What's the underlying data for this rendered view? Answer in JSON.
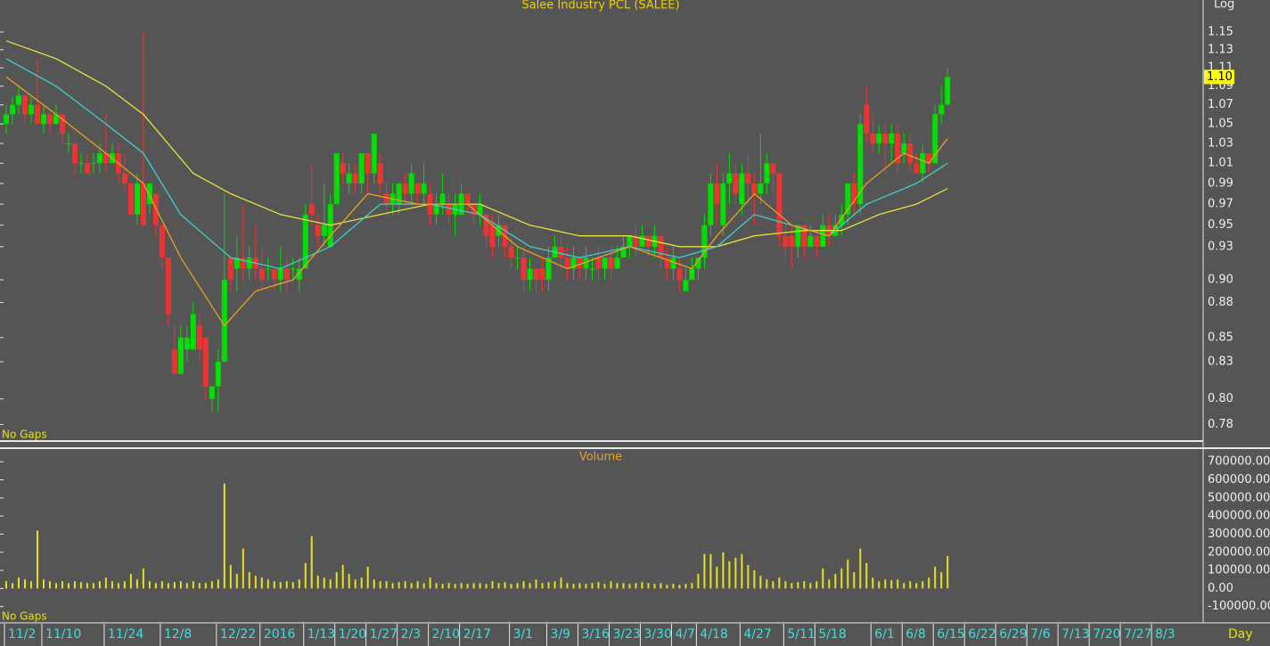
{
  "chart_data": [
    {
      "type": "candlestick",
      "title": "Salee Industry PCL (SALEE)",
      "scale_label": "Log",
      "note": "No Gaps",
      "log_scale": true,
      "up_color": "#00e000",
      "down_color": "#ee3333",
      "xlim": [
        -1,
        192
      ],
      "ylim": [
        0.768,
        1.187
      ],
      "yticks": [
        0.78,
        {
          "value": 0.8,
          "label": "0.80"
        },
        0.83,
        0.85,
        0.88,
        {
          "value": 0.9,
          "label": "0.90"
        },
        0.93,
        0.95,
        0.97,
        0.99,
        1.01,
        1.03,
        1.05,
        1.07,
        1.09,
        1.11,
        1.13,
        1.15
      ],
      "last_price": {
        "value": 1.1,
        "label": "1.10"
      },
      "open": [
        1.05,
        1.06,
        1.07,
        1.08,
        1.06,
        1.07,
        1.05,
        1.06,
        1.05,
        1.06,
        1.03,
        1.03,
        1.01,
        1.01,
        1.01,
        1.01,
        1.02,
        1.01,
        1.02,
        1.0,
        0.99,
        0.96,
        0.99,
        0.97,
        0.98,
        0.95,
        0.92,
        0.84,
        0.82,
        0.84,
        0.84,
        0.86,
        0.85,
        0.8,
        0.81,
        0.83,
        0.92,
        0.91,
        0.92,
        0.91,
        0.92,
        0.91,
        0.91,
        0.91,
        0.9,
        0.91,
        0.91,
        0.9,
        0.91,
        0.97,
        0.95,
        0.94,
        0.93,
        0.97,
        1.01,
        0.99,
        1.0,
        0.99,
        1.02,
        1.0,
        1.01,
        0.98,
        0.97,
        0.97,
        0.99,
        0.98,
        0.99,
        0.98,
        0.98,
        0.96,
        0.97,
        0.97,
        0.96,
        0.96,
        0.98,
        0.97,
        0.96,
        0.96,
        0.95,
        0.94,
        0.95,
        0.93,
        0.92,
        0.92,
        0.9,
        0.91,
        0.91,
        0.9,
        0.92,
        0.93,
        0.92,
        0.91,
        0.92,
        0.91,
        0.91,
        0.92,
        0.91,
        0.92,
        0.91,
        0.92,
        0.93,
        0.94,
        0.93,
        0.94,
        0.93,
        0.94,
        0.92,
        0.91,
        0.91,
        0.89,
        0.9,
        0.91,
        0.92,
        0.95,
        0.99,
        0.95,
        0.99,
        1.0,
        0.97,
        1.0,
        0.99,
        0.98,
        0.99,
        1.01,
        1.0,
        0.94,
        0.94,
        0.93,
        0.95,
        0.93,
        0.94,
        0.93,
        0.95,
        0.94,
        0.95,
        0.96,
        0.99,
        0.97,
        1.07,
        1.04,
        1.03,
        1.04,
        1.03,
        1.04,
        1.02,
        1.03,
        1.01,
        1.0,
        1.02,
        1.01,
        1.06,
        1.07
      ],
      "high": [
        1.07,
        1.08,
        1.09,
        1.08,
        1.08,
        1.12,
        1.07,
        1.06,
        1.07,
        1.06,
        1.04,
        1.03,
        1.02,
        1.02,
        1.02,
        1.03,
        1.06,
        1.03,
        1.03,
        1.02,
        0.99,
        1.0,
        1.15,
        0.99,
        0.98,
        0.95,
        0.92,
        0.86,
        0.86,
        0.86,
        0.88,
        0.87,
        0.85,
        0.81,
        0.84,
        0.98,
        0.92,
        0.94,
        0.97,
        0.93,
        0.95,
        0.93,
        0.92,
        0.91,
        0.93,
        0.92,
        0.92,
        0.92,
        0.97,
        1.01,
        0.96,
        0.99,
        0.98,
        1.02,
        1.02,
        1.01,
        1.01,
        1.02,
        1.02,
        1.04,
        1.02,
        0.99,
        0.99,
        0.99,
        1.0,
        1.01,
        0.99,
        1.01,
        0.99,
        0.98,
        1.0,
        0.98,
        0.98,
        0.99,
        0.98,
        0.97,
        0.98,
        0.96,
        0.96,
        0.96,
        0.95,
        0.94,
        0.93,
        0.93,
        0.92,
        0.91,
        0.92,
        0.93,
        0.94,
        0.94,
        0.93,
        0.93,
        0.92,
        0.93,
        0.92,
        0.93,
        0.92,
        0.93,
        0.93,
        0.94,
        0.94,
        0.95,
        0.95,
        0.94,
        0.95,
        0.94,
        0.93,
        0.93,
        0.92,
        0.91,
        0.92,
        0.92,
        0.96,
        1.0,
        1.01,
        1.0,
        1.02,
        1.01,
        1.01,
        1.02,
        1.0,
        1.04,
        1.02,
        1.01,
        1.0,
        0.95,
        0.95,
        0.95,
        0.95,
        0.95,
        0.94,
        0.96,
        0.96,
        0.96,
        0.97,
        0.99,
        1.0,
        1.06,
        1.09,
        1.06,
        1.05,
        1.05,
        1.05,
        1.05,
        1.04,
        1.04,
        1.02,
        1.03,
        1.02,
        1.07,
        1.09,
        1.11
      ],
      "low": [
        1.04,
        1.05,
        1.06,
        1.05,
        1.05,
        1.05,
        1.04,
        1.04,
        1.05,
        1.03,
        1.02,
        1.0,
        1.0,
        1.0,
        1.0,
        1.0,
        1.0,
        1.01,
        0.99,
        0.98,
        0.96,
        0.95,
        0.95,
        0.96,
        0.94,
        0.91,
        0.86,
        0.82,
        0.82,
        0.83,
        0.84,
        0.83,
        0.8,
        0.79,
        0.79,
        0.83,
        0.89,
        0.89,
        0.9,
        0.9,
        0.9,
        0.89,
        0.9,
        0.89,
        0.89,
        0.89,
        0.9,
        0.89,
        0.91,
        0.95,
        0.93,
        0.93,
        0.93,
        0.97,
        0.99,
        0.98,
        0.98,
        0.98,
        0.98,
        0.99,
        0.98,
        0.96,
        0.96,
        0.96,
        0.97,
        0.97,
        0.97,
        0.97,
        0.95,
        0.95,
        0.96,
        0.95,
        0.94,
        0.96,
        0.96,
        0.95,
        0.95,
        0.93,
        0.92,
        0.93,
        0.92,
        0.91,
        0.91,
        0.89,
        0.89,
        0.89,
        0.89,
        0.89,
        0.92,
        0.91,
        0.9,
        0.9,
        0.9,
        0.9,
        0.9,
        0.9,
        0.9,
        0.9,
        0.91,
        0.92,
        0.92,
        0.92,
        0.93,
        0.92,
        0.92,
        0.91,
        0.9,
        0.9,
        0.89,
        0.89,
        0.9,
        0.9,
        0.91,
        0.94,
        0.95,
        0.94,
        0.97,
        0.97,
        0.96,
        0.97,
        0.95,
        0.97,
        0.98,
        0.98,
        0.93,
        0.92,
        0.91,
        0.92,
        0.92,
        0.93,
        0.92,
        0.93,
        0.93,
        0.94,
        0.94,
        0.95,
        0.96,
        0.96,
        1.03,
        1.02,
        1.02,
        1.0,
        1.01,
        1.0,
        1.01,
        1.0,
        1.0,
        0.99,
        1.0,
        1.01,
        1.05,
        1.07
      ],
      "close": [
        1.06,
        1.07,
        1.08,
        1.06,
        1.07,
        1.05,
        1.06,
        1.05,
        1.06,
        1.04,
        1.03,
        1.01,
        1.01,
        1.0,
        1.01,
        1.02,
        1.01,
        1.02,
        1.0,
        0.99,
        0.96,
        0.99,
        0.95,
        0.99,
        0.95,
        0.92,
        0.87,
        0.82,
        0.85,
        0.85,
        0.87,
        0.84,
        0.81,
        0.81,
        0.83,
        0.9,
        0.9,
        0.92,
        0.91,
        0.92,
        0.91,
        0.9,
        0.91,
        0.9,
        0.91,
        0.9,
        0.91,
        0.91,
        0.96,
        0.96,
        0.94,
        0.95,
        0.97,
        1.02,
        1.0,
        1.0,
        0.99,
        1.02,
        1.0,
        1.04,
        0.99,
        0.97,
        0.98,
        0.99,
        0.98,
        1.0,
        0.98,
        0.99,
        0.96,
        0.97,
        0.98,
        0.96,
        0.97,
        0.98,
        0.97,
        0.96,
        0.97,
        0.94,
        0.93,
        0.95,
        0.93,
        0.92,
        0.92,
        0.9,
        0.91,
        0.9,
        0.9,
        0.92,
        0.93,
        0.92,
        0.91,
        0.92,
        0.91,
        0.92,
        0.91,
        0.91,
        0.92,
        0.91,
        0.92,
        0.93,
        0.94,
        0.93,
        0.94,
        0.93,
        0.94,
        0.92,
        0.91,
        0.92,
        0.9,
        0.9,
        0.91,
        0.92,
        0.95,
        0.99,
        0.97,
        0.99,
        1.0,
        0.98,
        1.0,
        0.99,
        0.98,
        0.99,
        1.01,
        1.0,
        0.94,
        0.93,
        0.93,
        0.95,
        0.93,
        0.94,
        0.93,
        0.95,
        0.94,
        0.95,
        0.96,
        0.99,
        0.97,
        1.05,
        1.04,
        1.03,
        1.04,
        1.03,
        1.04,
        1.01,
        1.03,
        1.01,
        1.0,
        1.02,
        1.01,
        1.06,
        1.07,
        1.1
      ],
      "series": [
        {
          "color": "#e8e040",
          "x": [
            0,
            8,
            16,
            22,
            30,
            36,
            44,
            52,
            60,
            68,
            76,
            84,
            92,
            100,
            108,
            114,
            120,
            128,
            134,
            140,
            146,
            151
          ],
          "values": [
            1.14,
            1.12,
            1.09,
            1.06,
            1.0,
            0.98,
            0.96,
            0.95,
            0.96,
            0.97,
            0.97,
            0.95,
            0.94,
            0.94,
            0.93,
            0.93,
            0.94,
            0.945,
            0.945,
            0.96,
            0.97,
            0.985
          ]
        },
        {
          "color": "#40d0d0",
          "x": [
            0,
            8,
            16,
            22,
            28,
            36,
            44,
            52,
            60,
            68,
            76,
            84,
            92,
            100,
            108,
            114,
            120,
            126,
            132,
            138,
            146,
            151
          ],
          "values": [
            1.12,
            1.09,
            1.05,
            1.02,
            0.96,
            0.92,
            0.91,
            0.93,
            0.97,
            0.97,
            0.96,
            0.93,
            0.92,
            0.93,
            0.92,
            0.93,
            0.96,
            0.95,
            0.94,
            0.97,
            0.99,
            1.01
          ]
        },
        {
          "color": "#f0a020",
          "x": [
            0,
            8,
            16,
            22,
            28,
            35,
            40,
            46,
            52,
            58,
            66,
            74,
            82,
            90,
            100,
            110,
            114,
            120,
            126,
            132,
            138,
            144,
            148,
            151
          ],
          "values": [
            1.1,
            1.06,
            1.02,
            0.99,
            0.92,
            0.86,
            0.89,
            0.9,
            0.94,
            0.98,
            0.97,
            0.97,
            0.93,
            0.91,
            0.93,
            0.91,
            0.94,
            0.98,
            0.95,
            0.94,
            0.99,
            1.02,
            1.01,
            1.035
          ]
        }
      ]
    },
    {
      "type": "bar",
      "title": "Volume",
      "note": "No Gaps",
      "color": "#e8e020",
      "period_label": "Day",
      "xlim": [
        -1,
        192
      ],
      "ylim": [
        -185000,
        765000
      ],
      "yticks": [
        {
          "value": -100000,
          "label": "-100000.00"
        },
        {
          "value": 0,
          "label": "0.00"
        },
        {
          "value": 100000,
          "label": "100000.00"
        },
        {
          "value": 200000,
          "label": "200000.00"
        },
        {
          "value": 300000,
          "label": "300000.00"
        },
        {
          "value": 400000,
          "label": "400000.00"
        },
        {
          "value": 500000,
          "label": "500000.00"
        },
        {
          "value": 600000,
          "label": "600000.00"
        },
        {
          "value": 700000,
          "label": "700000.00"
        }
      ],
      "xticks": [
        {
          "value": 0,
          "label": "11/2"
        },
        {
          "value": 6,
          "label": "11/10"
        },
        {
          "value": 16,
          "label": "11/24"
        },
        {
          "value": 25,
          "label": "12/8"
        },
        {
          "value": 34,
          "label": "12/22"
        },
        {
          "value": 41,
          "label": "2016"
        },
        {
          "value": 48,
          "label": "1/13"
        },
        {
          "value": 53,
          "label": "1/20"
        },
        {
          "value": 58,
          "label": "1/27"
        },
        {
          "value": 63,
          "label": "2/3"
        },
        {
          "value": 68,
          "label": "2/10"
        },
        {
          "value": 73,
          "label": "2/17"
        },
        {
          "value": 81,
          "label": "3/1"
        },
        {
          "value": 87,
          "label": "3/9"
        },
        {
          "value": 92,
          "label": "3/16"
        },
        {
          "value": 97,
          "label": "3/23"
        },
        {
          "value": 102,
          "label": "3/30"
        },
        {
          "value": 107,
          "label": "4/7"
        },
        {
          "value": 111,
          "label": "4/18"
        },
        {
          "value": 118,
          "label": "4/27"
        },
        {
          "value": 125,
          "label": "5/11"
        },
        {
          "value": 130,
          "label": "5/18"
        },
        {
          "value": 139,
          "label": "6/1"
        },
        {
          "value": 144,
          "label": "6/8"
        },
        {
          "value": 149,
          "label": "6/15"
        },
        {
          "value": 154,
          "label": "6/22"
        },
        {
          "value": 159,
          "label": "6/29"
        },
        {
          "value": 164,
          "label": "7/6"
        },
        {
          "value": 169,
          "label": "7/13"
        },
        {
          "value": 174,
          "label": "7/20"
        },
        {
          "value": 179,
          "label": "7/27"
        },
        {
          "value": 184,
          "label": "8/3"
        }
      ],
      "values": [
        40000,
        30000,
        60000,
        50000,
        40000,
        320000,
        50000,
        40000,
        30000,
        40000,
        30000,
        40000,
        35000,
        30000,
        30000,
        40000,
        60000,
        40000,
        30000,
        40000,
        80000,
        50000,
        110000,
        40000,
        30000,
        40000,
        30000,
        35000,
        40000,
        30000,
        40000,
        30000,
        30000,
        40000,
        50000,
        580000,
        130000,
        80000,
        220000,
        90000,
        70000,
        60000,
        50000,
        40000,
        35000,
        40000,
        35000,
        50000,
        140000,
        290000,
        70000,
        60000,
        50000,
        90000,
        130000,
        80000,
        50000,
        60000,
        120000,
        50000,
        40000,
        40000,
        30000,
        35000,
        40000,
        30000,
        40000,
        30000,
        60000,
        30000,
        25000,
        30000,
        25000,
        30000,
        25000,
        30000,
        30000,
        25000,
        40000,
        30000,
        35000,
        25000,
        30000,
        40000,
        30000,
        50000,
        30000,
        35000,
        40000,
        60000,
        30000,
        25000,
        30000,
        25000,
        30000,
        35000,
        25000,
        40000,
        30000,
        30000,
        25000,
        30000,
        35000,
        30000,
        25000,
        30000,
        20000,
        25000,
        20000,
        25000,
        30000,
        80000,
        190000,
        190000,
        120000,
        200000,
        150000,
        170000,
        190000,
        130000,
        100000,
        70000,
        50000,
        40000,
        60000,
        40000,
        30000,
        35000,
        40000,
        30000,
        40000,
        110000,
        50000,
        80000,
        110000,
        160000,
        90000,
        220000,
        140000,
        60000,
        40000,
        50000,
        45000,
        50000,
        30000,
        40000,
        30000,
        40000,
        60000,
        120000,
        90000,
        180000
      ]
    }
  ]
}
